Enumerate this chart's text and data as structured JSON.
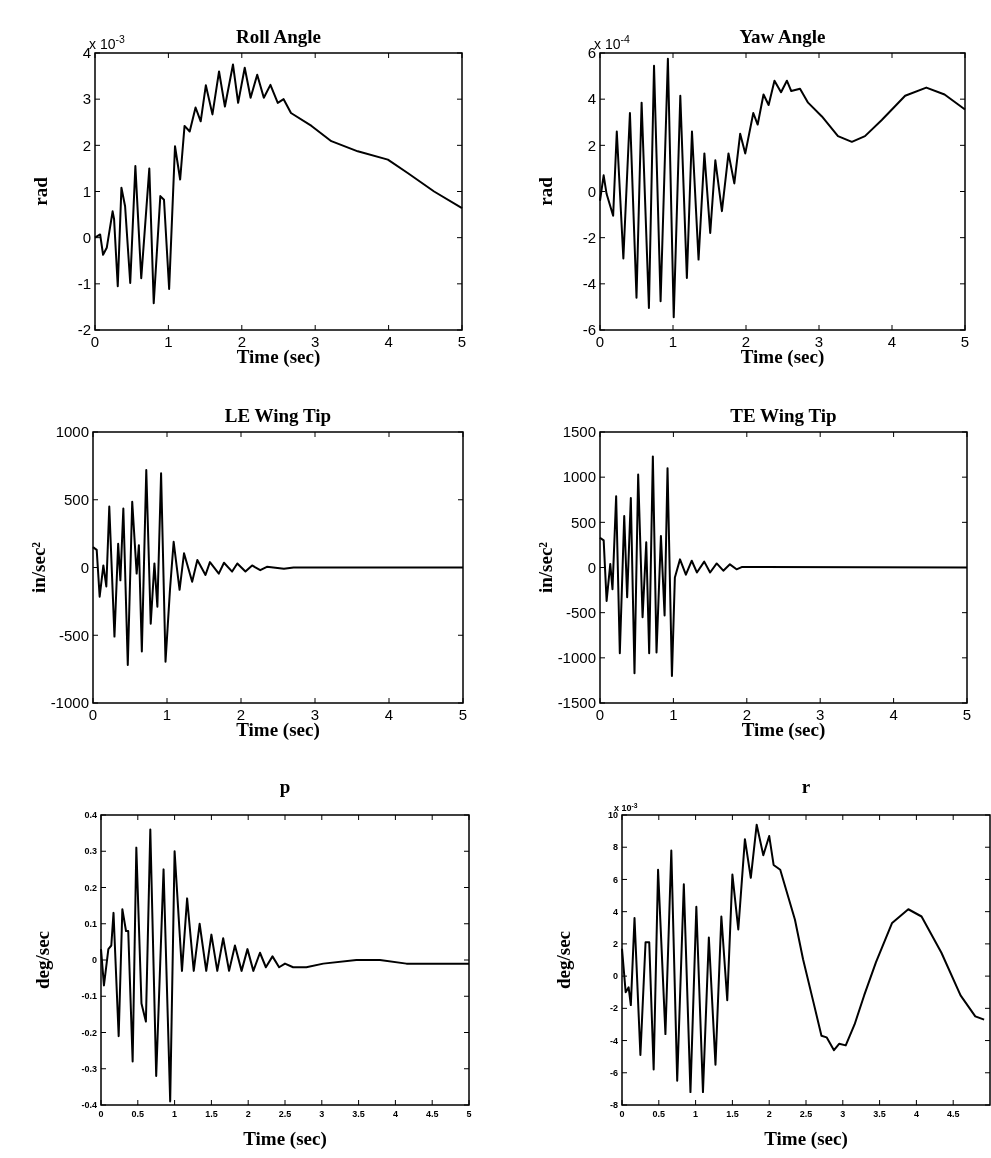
{
  "chart_data": [
    {
      "type": "line",
      "title": "Roll Angle",
      "xlabel": "Time (sec)",
      "ylabel": "rad",
      "annotations": [
        "x 10$^{-3}$"
      ],
      "xlim": [
        0,
        5
      ],
      "ylim": [
        -2,
        4
      ],
      "xticks": [
        0,
        1,
        2,
        3,
        4,
        5
      ],
      "yticks": [
        -2,
        -1,
        0,
        1,
        2,
        3,
        4
      ],
      "series": [
        {
          "color": "#000000",
          "x": [
            0,
            0.07,
            0.11,
            0.16,
            0.24,
            0.26,
            0.31,
            0.36,
            0.41,
            0.48,
            0.55,
            0.63,
            0.74,
            0.8,
            0.89,
            0.94,
            1.01,
            1.09,
            1.16,
            1.22,
            1.29,
            1.37,
            1.44,
            1.51,
            1.6,
            1.69,
            1.77,
            1.88,
            1.95,
            2.04,
            2.12,
            2.21,
            2.3,
            2.39,
            2.49,
            2.57,
            2.67,
            2.95,
            3.22,
            3.58,
            3.99,
            4.26,
            4.62,
            5
          ],
          "values": [
            0,
            0.07,
            -0.37,
            -0.22,
            0.57,
            0.4,
            -1.05,
            1.08,
            0.68,
            -0.98,
            1.55,
            -0.88,
            1.5,
            -1.42,
            0.9,
            0.82,
            -1.11,
            1.98,
            1.26,
            2.42,
            2.3,
            2.82,
            2.52,
            3.3,
            2.67,
            3.6,
            2.84,
            3.75,
            2.92,
            3.68,
            3.03,
            3.53,
            3.03,
            3.31,
            2.92,
            3.0,
            2.7,
            2.42,
            2.09,
            1.87,
            1.69,
            1.4,
            1.0,
            0.64
          ]
        }
      ]
    },
    {
      "type": "line",
      "title": "Yaw Angle",
      "xlabel": "Time (sec)",
      "ylabel": "rad",
      "annotations": [
        "x 10$^{-4}$"
      ],
      "xlim": [
        0,
        5
      ],
      "ylim": [
        -6,
        6
      ],
      "xticks": [
        0,
        1,
        2,
        3,
        4,
        5
      ],
      "yticks": [
        -6,
        -4,
        -2,
        0,
        2,
        4,
        6
      ],
      "series": [
        {
          "color": "#000000",
          "x": [
            0,
            0.05,
            0.09,
            0.18,
            0.23,
            0.32,
            0.41,
            0.5,
            0.57,
            0.67,
            0.74,
            0.83,
            0.93,
            1.01,
            1.1,
            1.19,
            1.26,
            1.35,
            1.43,
            1.51,
            1.58,
            1.67,
            1.76,
            1.84,
            1.92,
            1.99,
            2.1,
            2.16,
            2.24,
            2.31,
            2.39,
            2.48,
            2.56,
            2.62,
            2.74,
            2.85,
            3.04,
            3.26,
            3.45,
            3.63,
            3.86,
            4.18,
            4.47,
            4.72,
            5
          ],
          "values": [
            -0.4,
            0.7,
            -0.1,
            -1.05,
            2.6,
            -2.9,
            3.4,
            -4.6,
            3.85,
            -5.05,
            5.45,
            -4.75,
            5.75,
            -5.45,
            4.15,
            -3.75,
            2.6,
            -2.95,
            1.65,
            -1.8,
            1.35,
            -0.85,
            1.65,
            0.35,
            2.5,
            1.65,
            3.4,
            2.9,
            4.2,
            3.75,
            4.8,
            4.3,
            4.8,
            4.35,
            4.45,
            3.85,
            3.25,
            2.4,
            2.15,
            2.4,
            3.1,
            4.15,
            4.5,
            4.2,
            3.55
          ]
        }
      ]
    },
    {
      "type": "line",
      "title": "LE Wing Tip",
      "xlabel": "Time (sec)",
      "ylabel": "in/sec²",
      "xlim": [
        0,
        5
      ],
      "ylim": [
        -1000,
        1000
      ],
      "xticks": [
        0,
        1,
        2,
        3,
        4,
        5
      ],
      "yticks": [
        -1000,
        -500,
        0,
        500,
        1000
      ],
      "series": [
        {
          "color": "#000000",
          "x": [
            0,
            0.05,
            0.09,
            0.14,
            0.18,
            0.22,
            0.29,
            0.34,
            0.37,
            0.41,
            0.47,
            0.53,
            0.59,
            0.62,
            0.66,
            0.72,
            0.78,
            0.83,
            0.87,
            0.92,
            0.98,
            1.04,
            1.09,
            1.17,
            1.23,
            1.34,
            1.41,
            1.52,
            1.58,
            1.7,
            1.77,
            1.88,
            1.95,
            2.06,
            2.15,
            2.26,
            2.35,
            2.58,
            2.71,
            5
          ],
          "values": [
            150,
            130,
            -215,
            15,
            -140,
            450,
            -510,
            175,
            -95,
            435,
            -720,
            485,
            -45,
            165,
            -620,
            720,
            -415,
            30,
            -290,
            695,
            -695,
            -165,
            190,
            -165,
            105,
            -105,
            55,
            -55,
            40,
            -45,
            35,
            -30,
            30,
            -30,
            15,
            -20,
            5,
            -10,
            0,
            0
          ]
        }
      ]
    },
    {
      "type": "line",
      "title": "TE Wing Tip",
      "xlabel": "Time (sec)",
      "ylabel": "in/sec²",
      "xlim": [
        0,
        5
      ],
      "ylim": [
        -1500,
        1500
      ],
      "xticks": [
        0,
        1,
        2,
        3,
        4,
        5
      ],
      "yticks": [
        -1500,
        -1000,
        -500,
        0,
        500,
        1000,
        1500
      ],
      "series": [
        {
          "color": "#000000",
          "x": [
            0,
            0.05,
            0.09,
            0.14,
            0.17,
            0.22,
            0.27,
            0.33,
            0.37,
            0.42,
            0.47,
            0.52,
            0.58,
            0.63,
            0.67,
            0.72,
            0.77,
            0.83,
            0.88,
            0.92,
            0.98,
            1.02,
            1.09,
            1.17,
            1.25,
            1.32,
            1.42,
            1.5,
            1.59,
            1.68,
            1.77,
            1.86,
            1.93,
            5
          ],
          "values": [
            330,
            300,
            -370,
            40,
            -240,
            790,
            -950,
            570,
            -330,
            770,
            -1170,
            1030,
            -550,
            280,
            -950,
            1230,
            -940,
            350,
            -530,
            1100,
            -1200,
            -110,
            90,
            -80,
            75,
            -55,
            65,
            -55,
            45,
            -35,
            35,
            -20,
            5,
            0
          ]
        }
      ]
    },
    {
      "type": "line",
      "title": "p",
      "xlabel": "Time (sec)",
      "ylabel": "deg/sec",
      "xlim": [
        0,
        5
      ],
      "ylim": [
        -0.4,
        0.4
      ],
      "xticks": [
        0,
        0.5,
        1,
        1.5,
        2,
        2.5,
        3,
        3.5,
        4,
        4.5,
        5
      ],
      "yticks": [
        -0.4,
        -0.3,
        -0.2,
        -0.1,
        0,
        0.1,
        0.2,
        0.3,
        0.4
      ],
      "series": [
        {
          "color": "#000000",
          "x": [
            0,
            0.04,
            0.1,
            0.14,
            0.17,
            0.24,
            0.29,
            0.34,
            0.37,
            0.43,
            0.48,
            0.55,
            0.61,
            0.67,
            0.75,
            0.85,
            0.94,
            1.0,
            1.1,
            1.17,
            1.26,
            1.34,
            1.43,
            1.5,
            1.58,
            1.66,
            1.74,
            1.82,
            1.91,
            1.99,
            2.07,
            2.16,
            2.24,
            2.33,
            2.42,
            2.5,
            2.61,
            2.79,
            3.02,
            3.47,
            3.79,
            4.15,
            4.51,
            5
          ],
          "values": [
            0.03,
            -0.07,
            0.03,
            0.04,
            0.13,
            -0.21,
            0.14,
            0.08,
            0.08,
            -0.28,
            0.31,
            -0.12,
            -0.17,
            0.36,
            -0.32,
            0.25,
            -0.39,
            0.3,
            -0.03,
            0.17,
            -0.03,
            0.1,
            -0.03,
            0.07,
            -0.03,
            0.06,
            -0.03,
            0.04,
            -0.03,
            0.03,
            -0.03,
            0.02,
            -0.02,
            0.01,
            -0.02,
            -0.01,
            -0.02,
            -0.02,
            -0.01,
            0,
            0,
            -0.01,
            -0.01,
            -0.01
          ]
        }
      ]
    },
    {
      "type": "line",
      "title": "r",
      "xlabel": "Time (sec)",
      "ylabel": "deg/sec",
      "annotations": [
        "x 10$^{-3}$"
      ],
      "xlim": [
        0,
        5
      ],
      "ylim": [
        -8,
        10
      ],
      "xticks": [
        0,
        0.5,
        1,
        1.5,
        2,
        2.5,
        3,
        3.5,
        4,
        4.5
      ],
      "yticks": [
        -8,
        -6,
        -4,
        -2,
        0,
        2,
        4,
        6,
        8,
        10
      ],
      "series": [
        {
          "color": "#000000",
          "x": [
            0,
            0.05,
            0.09,
            0.12,
            0.17,
            0.25,
            0.32,
            0.37,
            0.43,
            0.49,
            0.59,
            0.67,
            0.75,
            0.84,
            0.93,
            1.01,
            1.1,
            1.18,
            1.27,
            1.35,
            1.43,
            1.5,
            1.58,
            1.67,
            1.75,
            1.83,
            1.92,
            2.0,
            2.06,
            2.15,
            2.26,
            2.35,
            2.46,
            2.6,
            2.71,
            2.78,
            2.88,
            2.95,
            3.04,
            3.16,
            3.29,
            3.45,
            3.67,
            3.89,
            4.07,
            4.34,
            4.6,
            4.8,
            4.92
          ],
          "values": [
            1.7,
            -1,
            -0.7,
            -1.8,
            3.6,
            -4.9,
            2.1,
            2.1,
            -5.8,
            6.6,
            -3.6,
            7.8,
            -6.5,
            5.7,
            -7.2,
            4.3,
            -7.2,
            2.4,
            -5.5,
            3.7,
            -1.5,
            6.3,
            2.9,
            8.5,
            6.1,
            9.4,
            7.5,
            8.7,
            6.9,
            6.6,
            4.9,
            3.5,
            1.05,
            -1.6,
            -3.7,
            -3.8,
            -4.6,
            -4.2,
            -4.3,
            -3,
            -1.2,
            0.85,
            3.3,
            4.15,
            3.7,
            1.45,
            -1.2,
            -2.5,
            -2.7
          ]
        }
      ]
    }
  ]
}
